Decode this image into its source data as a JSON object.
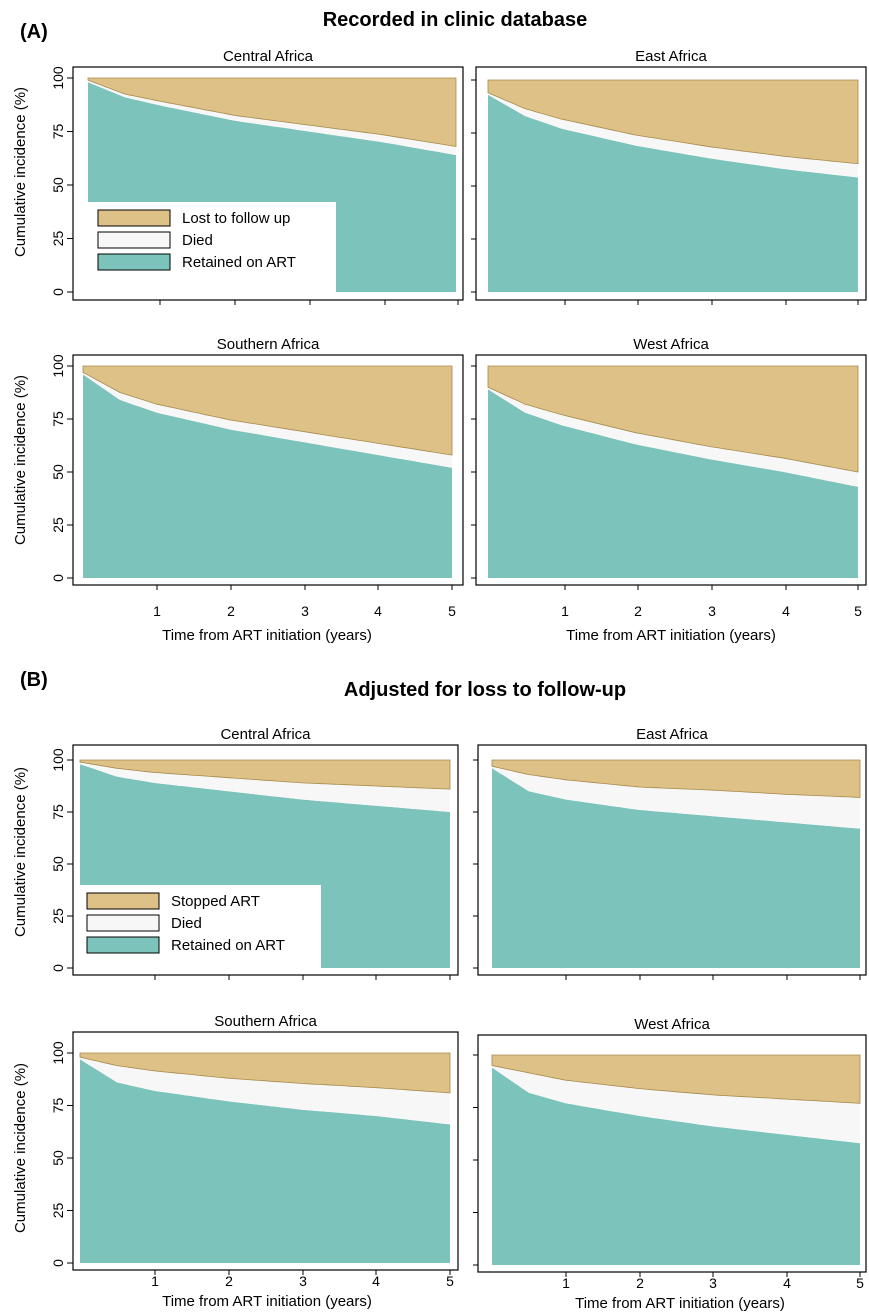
{
  "colors": {
    "retained": "#7cc3bc",
    "died": "#f7f7f7",
    "lost": "#dec187"
  },
  "panel_a": {
    "tag": "(A)",
    "title": "Recorded in clinic database",
    "legend": [
      "Lost to follow up",
      "Died",
      "Retained on ART"
    ]
  },
  "panel_b": {
    "tag": "(B)",
    "title": "Adjusted for loss to follow-up",
    "legend": [
      "Stopped ART",
      "Died",
      "Retained on ART"
    ]
  },
  "axes": {
    "ylabel": "Cumulative incidence (%)",
    "xlabel": "Time from ART initiation (years)",
    "yticks": [
      "0",
      "25",
      "50",
      "75",
      "100"
    ],
    "xticks": [
      "1",
      "2",
      "3",
      "4",
      "5"
    ]
  },
  "chart_data": [
    {
      "type": "area",
      "panel": "A",
      "title": "Central Africa",
      "x": [
        0,
        0.5,
        1,
        2,
        3,
        4,
        5
      ],
      "xlim": [
        0,
        5
      ],
      "ylim": [
        0,
        100
      ],
      "series": [
        {
          "name": "Retained on ART",
          "values": [
            98,
            91,
            87,
            80,
            75,
            70,
            64
          ]
        },
        {
          "name": "Died",
          "values": [
            1,
            1.5,
            2,
            2.5,
            3,
            3.5,
            4
          ]
        },
        {
          "name": "Lost to follow up",
          "values": [
            1,
            7.5,
            11,
            17.5,
            22,
            26.5,
            32
          ]
        }
      ]
    },
    {
      "type": "area",
      "panel": "A",
      "title": "East Africa",
      "x": [
        0,
        0.5,
        1,
        2,
        3,
        4,
        5
      ],
      "xlim": [
        0,
        5
      ],
      "ylim": [
        0,
        100
      ],
      "series": [
        {
          "name": "Retained on ART",
          "values": [
            93,
            83,
            77,
            69,
            63,
            58,
            54
          ]
        },
        {
          "name": "Died",
          "values": [
            1,
            3.5,
            4.5,
            5,
            5.5,
            6,
            6.5
          ]
        },
        {
          "name": "Lost to follow up",
          "values": [
            6,
            13.5,
            18.5,
            26,
            31.5,
            36,
            39.5
          ]
        }
      ]
    },
    {
      "type": "area",
      "panel": "A",
      "title": "Southern Africa",
      "x": [
        0,
        0.5,
        1,
        2,
        3,
        4,
        5
      ],
      "xlim": [
        0,
        5
      ],
      "ylim": [
        0,
        100
      ],
      "series": [
        {
          "name": "Retained on ART",
          "values": [
            96,
            84,
            78,
            70,
            64,
            58,
            52
          ]
        },
        {
          "name": "Died",
          "values": [
            1,
            3.5,
            4,
            4.5,
            5,
            5.5,
            6
          ]
        },
        {
          "name": "Lost to follow up",
          "values": [
            3,
            12.5,
            18,
            25.5,
            31,
            36.5,
            42
          ]
        }
      ]
    },
    {
      "type": "area",
      "panel": "A",
      "title": "West Africa",
      "x": [
        0,
        0.5,
        1,
        2,
        3,
        4,
        5
      ],
      "xlim": [
        0,
        5
      ],
      "ylim": [
        0,
        100
      ],
      "series": [
        {
          "name": "Retained on ART",
          "values": [
            89,
            78,
            72,
            63,
            56,
            50,
            43
          ]
        },
        {
          "name": "Died",
          "values": [
            1,
            4,
            5,
            5.5,
            6,
            6.5,
            7
          ]
        },
        {
          "name": "Lost to follow up",
          "values": [
            10,
            18,
            23,
            31.5,
            38,
            43.5,
            50
          ]
        }
      ]
    },
    {
      "type": "area",
      "panel": "B",
      "title": "Central Africa",
      "x": [
        0,
        0.5,
        1,
        2,
        3,
        4,
        5
      ],
      "xlim": [
        0,
        5
      ],
      "ylim": [
        0,
        100
      ],
      "series": [
        {
          "name": "Retained on ART",
          "values": [
            98,
            92,
            89,
            85,
            81,
            78,
            75
          ]
        },
        {
          "name": "Died",
          "values": [
            1,
            4,
            5,
            6.5,
            8,
            9.5,
            11
          ]
        },
        {
          "name": "Stopped ART",
          "values": [
            1,
            4,
            6,
            8.5,
            11,
            12.5,
            14
          ]
        }
      ]
    },
    {
      "type": "area",
      "panel": "B",
      "title": "East Africa",
      "x": [
        0,
        0.5,
        1,
        2,
        3,
        4,
        5
      ],
      "xlim": [
        0,
        5
      ],
      "ylim": [
        0,
        100
      ],
      "series": [
        {
          "name": "Retained on ART",
          "values": [
            96,
            85,
            81,
            76,
            73,
            70,
            67
          ]
        },
        {
          "name": "Died",
          "values": [
            1,
            8,
            9.5,
            11,
            12.5,
            13.5,
            15
          ]
        },
        {
          "name": "Stopped ART",
          "values": [
            3,
            7,
            9.5,
            13,
            14.5,
            16.5,
            18
          ]
        }
      ]
    },
    {
      "type": "area",
      "panel": "B",
      "title": "Southern Africa",
      "x": [
        0,
        0.5,
        1,
        2,
        3,
        4,
        5
      ],
      "xlim": [
        0,
        5
      ],
      "ylim": [
        0,
        100
      ],
      "series": [
        {
          "name": "Retained on ART",
          "values": [
            97,
            86,
            82,
            77,
            73,
            70,
            66
          ]
        },
        {
          "name": "Died",
          "values": [
            1,
            8,
            9.5,
            11,
            12.5,
            13.5,
            15
          ]
        },
        {
          "name": "Stopped ART",
          "values": [
            2,
            6,
            8.5,
            12,
            14.5,
            16.5,
            19
          ]
        }
      ]
    },
    {
      "type": "area",
      "panel": "B",
      "title": "West Africa",
      "x": [
        0,
        0.5,
        1,
        2,
        3,
        4,
        5
      ],
      "xlim": [
        0,
        5
      ],
      "ylim": [
        0,
        100
      ],
      "series": [
        {
          "name": "Retained on ART",
          "values": [
            94,
            82,
            77,
            71,
            66,
            62,
            58
          ]
        },
        {
          "name": "Died",
          "values": [
            1,
            9.5,
            11,
            13,
            15,
            17,
            19
          ]
        },
        {
          "name": "Stopped ART",
          "values": [
            5,
            8.5,
            12,
            16,
            19,
            21,
            23
          ]
        }
      ]
    }
  ]
}
